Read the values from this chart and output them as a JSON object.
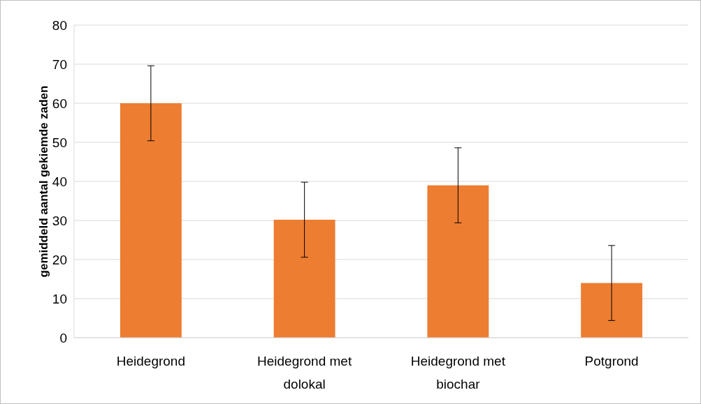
{
  "chart_data": {
    "type": "bar",
    "ylabel": "gemiddeld aantal gekiemde zaden",
    "categories": [
      "Heidegrond",
      "Heidegrond met dolokal",
      "Heidegrond met biochar",
      "Potgrond"
    ],
    "values": [
      60,
      30.2,
      39,
      14
    ],
    "errors": [
      9.6,
      9.6,
      9.6,
      9.6
    ],
    "color": "#ed7d31",
    "ylim": [
      0,
      80
    ],
    "yticks": [
      0,
      10,
      20,
      30,
      40,
      50,
      60,
      70,
      80
    ],
    "grid": "y"
  }
}
